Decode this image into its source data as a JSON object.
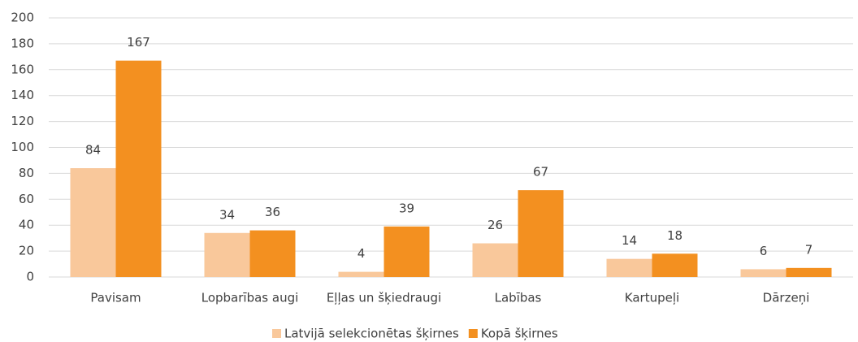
{
  "chart_data": {
    "type": "bar",
    "categories": [
      "Pavisam",
      "Lopbarības augi",
      "Eļļas un šķiedraugi",
      "Labības",
      "Kartupeļi",
      "Dārzeņi"
    ],
    "series": [
      {
        "name": "Latvijā selekcionētas šķirnes",
        "color": "#f9c89b",
        "values": [
          84,
          34,
          4,
          26,
          14,
          6
        ]
      },
      {
        "name": "Kopā šķirnes",
        "color": "#f39020",
        "values": [
          167,
          36,
          39,
          67,
          18,
          7
        ]
      }
    ],
    "ylim": [
      0,
      200
    ],
    "yticks": [
      0,
      20,
      40,
      60,
      80,
      100,
      120,
      140,
      160,
      180,
      200
    ],
    "grid": true,
    "legend": "bottom",
    "data_labels": true
  }
}
